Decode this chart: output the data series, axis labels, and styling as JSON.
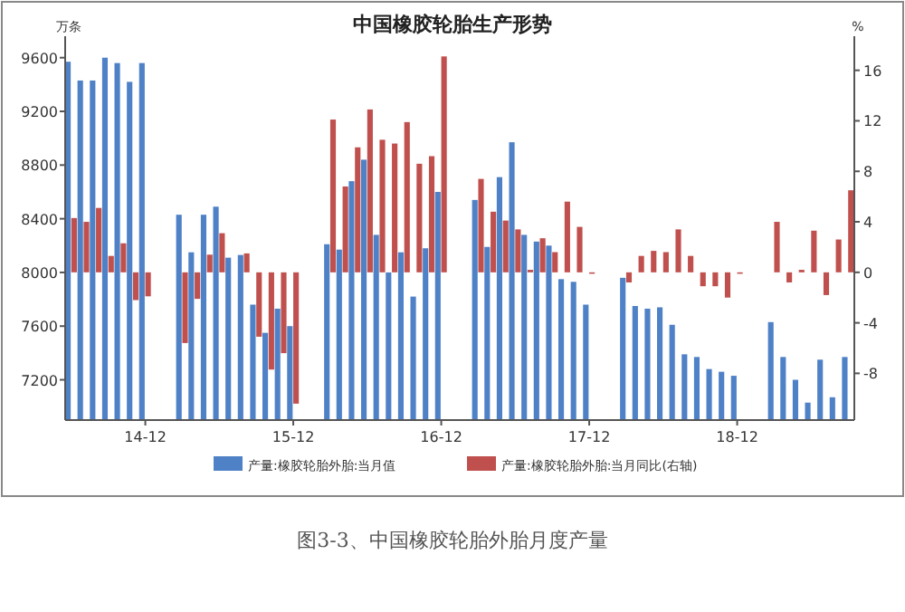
{
  "chart_data": {
    "type": "bar",
    "title": "中国橡胶轮胎生产形势",
    "ylabel": "万条",
    "y2label": "%",
    "categories": [
      null,
      null,
      null,
      null,
      null,
      null,
      "14-12",
      null,
      null,
      null,
      null,
      null,
      null,
      null,
      null,
      null,
      null,
      null,
      "15-12",
      null,
      null,
      null,
      null,
      null,
      null,
      null,
      null,
      null,
      null,
      null,
      "16-12",
      null,
      null,
      null,
      null,
      null,
      null,
      null,
      null,
      null,
      null,
      null,
      "17-12",
      null,
      null,
      null,
      null,
      null,
      null,
      null,
      null,
      null,
      null,
      null,
      "18-12",
      null,
      null,
      null,
      null,
      null,
      null,
      null,
      null,
      null
    ],
    "series": [
      {
        "name": "产量:橡胶轮胎外胎:当月值",
        "color": "#4f81c7",
        "values": [
          9570,
          9430,
          9430,
          9600,
          9560,
          9420,
          9560,
          null,
          null,
          8430,
          8150,
          8430,
          8490,
          8110,
          8130,
          7760,
          7550,
          7730,
          7600,
          null,
          null,
          8210,
          8170,
          8680,
          8840,
          8280,
          8000,
          8150,
          7820,
          8180,
          8600,
          null,
          null,
          8540,
          8190,
          8710,
          8970,
          8280,
          8230,
          8200,
          7950,
          7930,
          7760,
          null,
          null,
          7960,
          7750,
          7730,
          7740,
          7610,
          7390,
          7370,
          7280,
          7260,
          7230,
          null,
          null,
          7630,
          7370,
          7200,
          7030,
          7350,
          7070,
          7370
        ]
      },
      {
        "name": "产量:橡胶轮胎外胎:当月同比(右轴)",
        "color": "#c0504d",
        "axis": "y2",
        "values": [
          4.3,
          4.0,
          5.1,
          1.3,
          2.3,
          -2.2,
          -1.9,
          null,
          null,
          -5.6,
          -2.1,
          1.4,
          3.1,
          null,
          1.5,
          -5.1,
          -7.7,
          -6.4,
          -10.4,
          null,
          null,
          12.1,
          6.8,
          9.9,
          12.9,
          10.5,
          10.2,
          11.9,
          8.6,
          9.2,
          17.1,
          null,
          null,
          7.4,
          4.8,
          4.1,
          3.4,
          0.2,
          2.7,
          1.6,
          5.6,
          3.6,
          0,
          null,
          null,
          -0.8,
          1.3,
          1.7,
          1.6,
          3.4,
          1.3,
          -1.1,
          -1.1,
          -2.0,
          0,
          null,
          null,
          4.0,
          -0.8,
          0.2,
          3.3,
          -1.8,
          2.6,
          6.5
        ]
      }
    ],
    "ylim": [
      6900,
      9760
    ],
    "yticks": [
      7200,
      7600,
      8000,
      8400,
      8800,
      9200,
      9600
    ],
    "y2lim": [
      -11.7,
      18.7
    ],
    "y2ticks": [
      -8,
      -4,
      0,
      4,
      8,
      12,
      16
    ],
    "legend": "bottom",
    "grid": false,
    "annotations": [
      "图3-3、中国橡胶轮胎外胎月度产量"
    ]
  }
}
